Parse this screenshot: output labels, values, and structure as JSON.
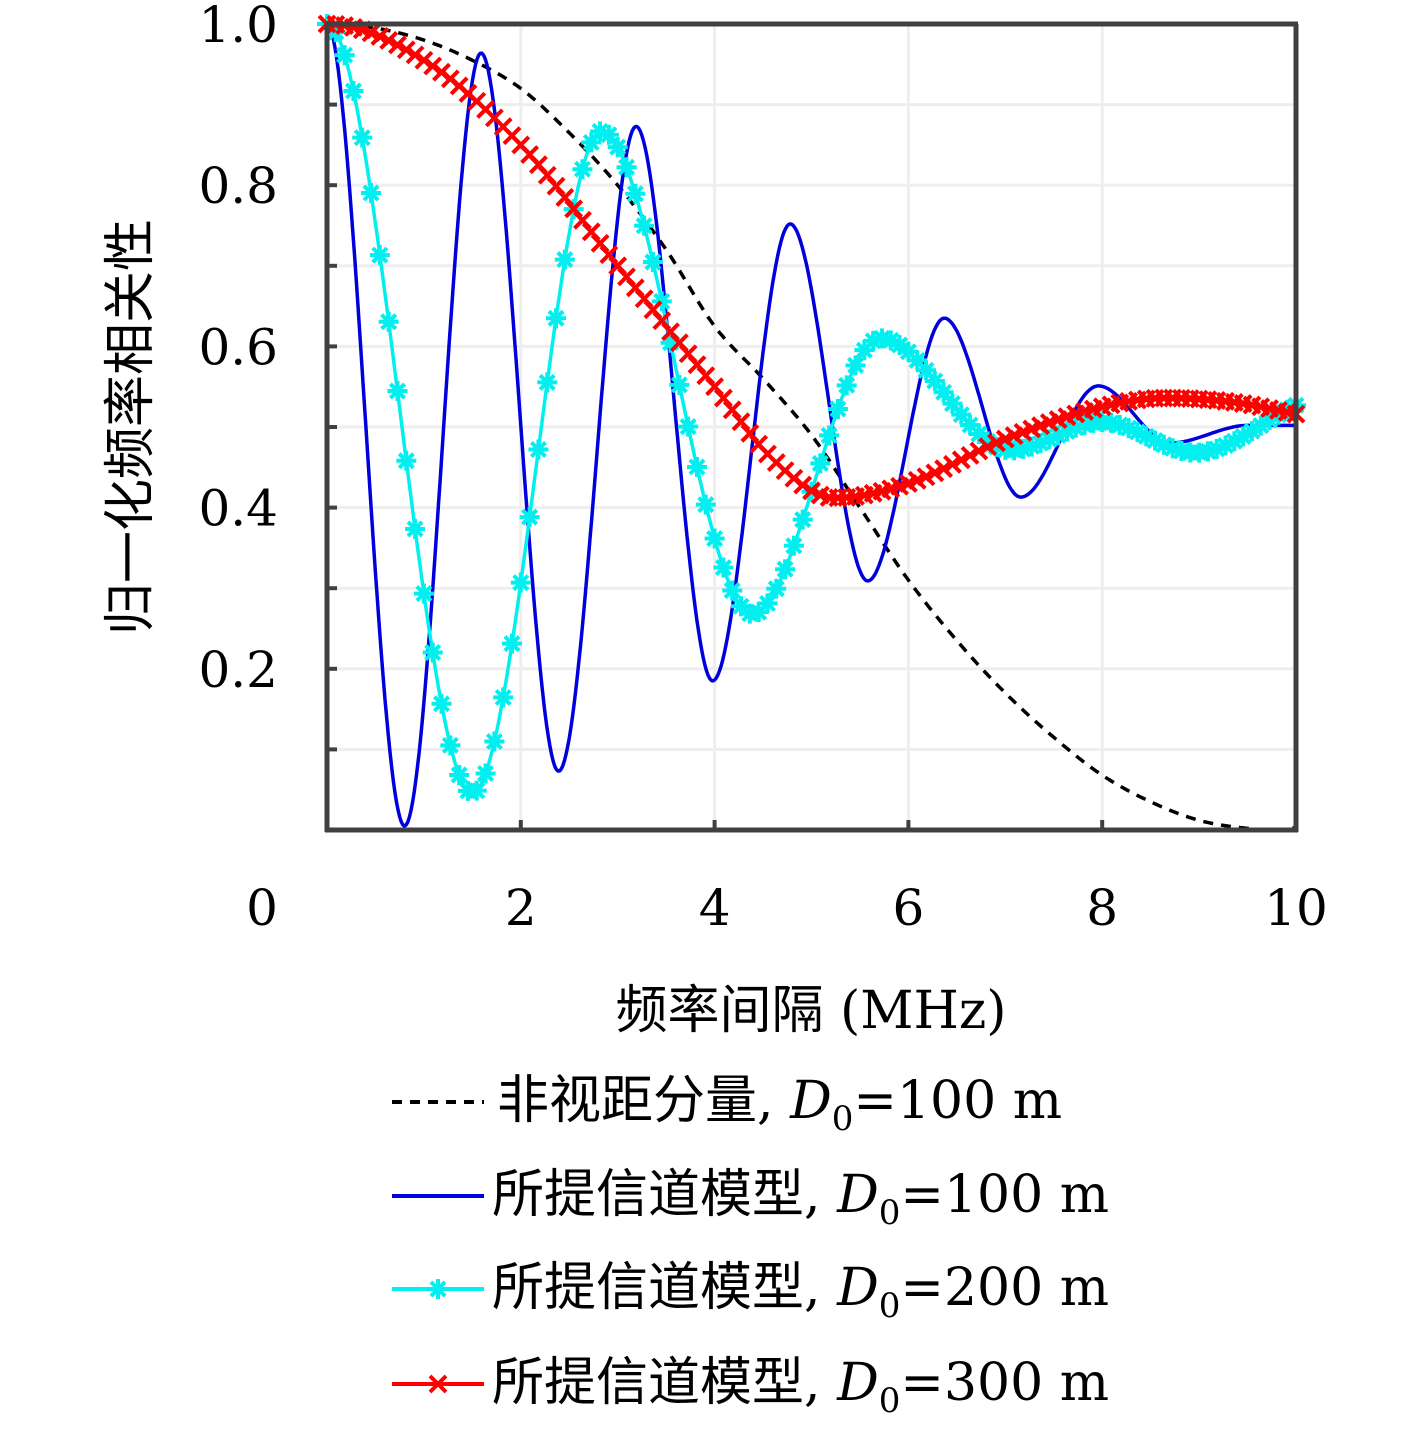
{
  "chart_data": {
    "type": "line",
    "title": "",
    "xlabel": "频率间隔 (MHz)",
    "ylabel": "归一化频率相关性",
    "xlim": [
      0,
      10
    ],
    "ylim": [
      0,
      1.0
    ],
    "xticks": [
      0,
      2,
      4,
      6,
      8,
      10
    ],
    "xtick_labels": [
      "0",
      "2",
      "4",
      "6",
      "8",
      "10"
    ],
    "yticks": [
      0.2,
      0.4,
      0.6,
      0.8,
      1.0
    ],
    "ytick_labels": [
      "0.2",
      "0.4",
      "0.6",
      "0.8",
      "1.0"
    ],
    "grid": true,
    "legend_position": "bottom",
    "series": [
      {
        "name": "非视距分量, D0=100 m",
        "legend_prefix": "非视距分量, ",
        "legend_value": "=100 m",
        "color": "#000000",
        "style": "dashed",
        "marker": "none",
        "x": [
          0,
          0.5,
          1,
          1.5,
          2,
          2.5,
          3,
          3.5,
          4,
          4.5,
          5,
          5.5,
          6,
          6.5,
          7,
          7.5,
          8,
          8.5,
          9,
          9.5,
          9.8,
          10
        ],
        "y": [
          1.0,
          0.995,
          0.98,
          0.955,
          0.92,
          0.865,
          0.8,
          0.72,
          0.625,
          0.56,
          0.49,
          0.4,
          0.31,
          0.235,
          0.17,
          0.115,
          0.068,
          0.035,
          0.012,
          0.002,
          0.0,
          0.003
        ]
      },
      {
        "name": "所提信道模型, D0=100 m",
        "legend_prefix": "所提信道模型, ",
        "legend_value": "=100 m",
        "color": "#0000dd",
        "style": "solid",
        "marker": "none",
        "x": [
          0,
          0.8,
          1.59,
          2.39,
          3.19,
          3.98,
          4.78,
          5.58,
          6.37,
          7.16,
          7.96,
          8.7,
          9.5,
          10
        ],
        "y": [
          1.0,
          0.005,
          0.964,
          0.073,
          0.873,
          0.185,
          0.752,
          0.309,
          0.635,
          0.413,
          0.551,
          0.48,
          0.502,
          0.502
        ]
      },
      {
        "name": "所提信道模型, D0=200 m",
        "legend_prefix": "所提信道模型, ",
        "legend_value": "=200 m",
        "color": "#00f0f0",
        "style": "solid",
        "marker": "asterisk",
        "x": [
          0,
          1.5,
          2.83,
          4.39,
          5.71,
          7.05,
          8.0,
          8.96,
          10
        ],
        "y": [
          1.0,
          0.046,
          0.867,
          0.268,
          0.61,
          0.471,
          0.506,
          0.468,
          0.527
        ]
      },
      {
        "name": "所提信道模型, D0=300 m",
        "legend_prefix": "所提信道模型, ",
        "legend_value": "=300 m",
        "color": "#ff0000",
        "style": "solid",
        "marker": "x",
        "x": [
          0,
          1,
          2,
          3,
          4,
          4.6,
          5.24,
          6,
          7,
          8,
          8.65,
          9.4,
          10
        ],
        "y": [
          1.0,
          0.955,
          0.85,
          0.7,
          0.55,
          0.46,
          0.412,
          0.43,
          0.485,
          0.525,
          0.536,
          0.53,
          0.516
        ]
      }
    ],
    "legend_subscript_symbol": "D",
    "legend_subscript_index": "0"
  }
}
